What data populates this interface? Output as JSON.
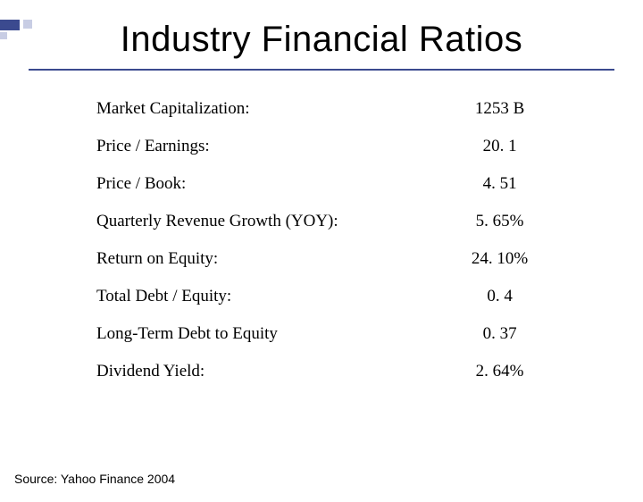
{
  "slide": {
    "title": "Industry Financial Ratios",
    "accent_color": "#3b4a8f",
    "accent_light": "#c8cde4",
    "background": "#ffffff",
    "title_fontsize": 40,
    "table_fontsize": 19,
    "table_font": "Times New Roman",
    "source_fontsize": 14
  },
  "ratios": {
    "rows": [
      {
        "label": "Market Capitalization:",
        "value": "1253 B"
      },
      {
        "label": "Price / Earnings:",
        "value": "20. 1"
      },
      {
        "label": "Price / Book:",
        "value": "4. 51"
      },
      {
        "label": "Quarterly Revenue Growth (YOY):",
        "value": "5. 65%"
      },
      {
        "label": "Return on Equity:",
        "value": "24. 10%"
      },
      {
        "label": "Total Debt / Equity:",
        "value": "0. 4"
      },
      {
        "label": "Long-Term Debt to Equity",
        "value": "0. 37"
      },
      {
        "label": "Dividend Yield:",
        "value": "2. 64%"
      }
    ]
  },
  "source": "Source: Yahoo Finance 2004"
}
